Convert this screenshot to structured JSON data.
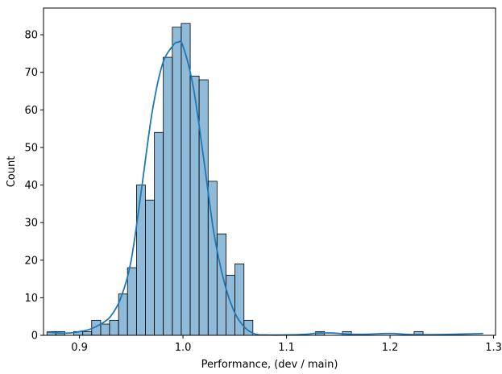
{
  "chart_data": {
    "type": "bar",
    "subtype": "histogram",
    "title": "",
    "xlabel": "Performance, (dev / main)",
    "ylabel": "Count",
    "xlim": [
      0.8653,
      1.3019
    ],
    "ylim": [
      0,
      87.1
    ],
    "xticks": [
      0.9,
      1.0,
      1.1,
      1.2,
      1.3
    ],
    "xtick_labels": [
      "0.9",
      "1.0",
      "1.1",
      "1.2",
      "1.3"
    ],
    "yticks": [
      0,
      10,
      20,
      30,
      40,
      50,
      60,
      70,
      80
    ],
    "ytick_labels": [
      "0",
      "10",
      "20",
      "30",
      "40",
      "50",
      "60",
      "70",
      "80"
    ],
    "grid": false,
    "legend": null,
    "bin_edges": [
      0.8686,
      0.8772,
      0.8859,
      0.8945,
      0.9032,
      0.9118,
      0.9205,
      0.9291,
      0.9378,
      0.9464,
      0.9551,
      0.9637,
      0.9724,
      0.981,
      0.9897,
      0.9983,
      1.007,
      1.0156,
      1.0243,
      1.0329,
      1.0416,
      1.0502,
      1.0589,
      1.0675,
      1.0762,
      1.0848,
      1.0935,
      1.1021,
      1.1108,
      1.1194,
      1.1281,
      1.1367,
      1.1454,
      1.154,
      1.1627,
      1.1713,
      1.18,
      1.1886,
      1.1973,
      1.2059,
      1.2146,
      1.2232,
      1.2319,
      1.2405,
      1.2492,
      1.2578,
      1.2665,
      1.2751,
      1.2838,
      1.2924
    ],
    "counts": [
      1,
      1,
      0,
      1,
      1,
      4,
      3,
      4,
      11,
      18,
      40,
      36,
      54,
      74,
      82,
      83,
      69,
      68,
      41,
      27,
      16,
      19,
      4,
      0,
      0,
      0,
      0,
      0,
      0,
      0,
      1,
      0,
      0,
      1,
      0,
      0,
      0,
      0,
      0,
      0,
      0,
      1,
      0,
      0,
      0,
      0,
      0,
      0,
      0,
      1
    ],
    "kde": {
      "x": [
        0.8686,
        0.88,
        0.89,
        0.9,
        0.91,
        0.92,
        0.93,
        0.94,
        0.95,
        0.96,
        0.97,
        0.98,
        0.99,
        0.995,
        1.0,
        1.01,
        1.02,
        1.03,
        1.04,
        1.05,
        1.06,
        1.07,
        1.08,
        1.1,
        1.12,
        1.13,
        1.145,
        1.16,
        1.18,
        1.2,
        1.22,
        1.25,
        1.28,
        1.29
      ],
      "y": [
        0.9,
        0.6,
        0.6,
        1.0,
        1.6,
        2.9,
        5.0,
        10.0,
        20.0,
        39.0,
        59.0,
        72.0,
        77.0,
        78.0,
        77.0,
        66.0,
        47.0,
        27.0,
        14.0,
        6.0,
        2.0,
        0.3,
        0.1,
        0.1,
        0.3,
        0.6,
        0.6,
        0.3,
        0.3,
        0.5,
        0.2,
        0.2,
        0.4,
        0.5
      ]
    },
    "colors": {
      "bar_fill": "#1f77b4",
      "bar_fill_opacity": 0.5,
      "bar_edge": "#000000",
      "kde_line": "#1f77b4"
    }
  }
}
